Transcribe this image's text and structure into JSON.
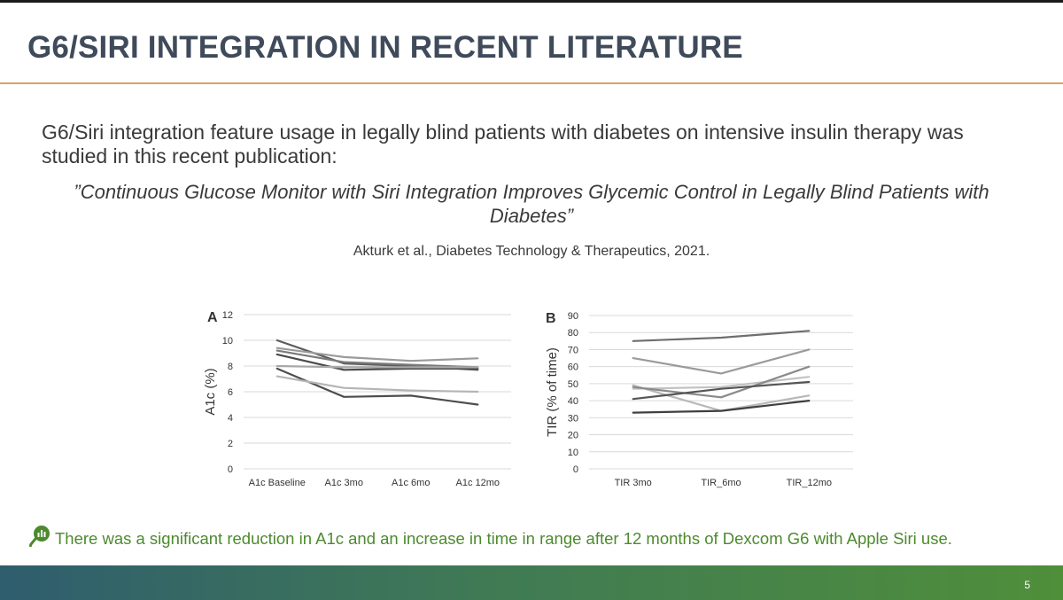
{
  "slide": {
    "title": "G6/SIRI INTEGRATION IN RECENT LITERATURE",
    "intro": "G6/Siri integration feature usage in legally blind patients with diabetes on intensive insulin therapy was studied in this recent publication:",
    "quote": "”Continuous Glucose Monitor with Siri Integration Improves Glycemic Control in Legally Blind Patients with Diabetes”",
    "citation": "Akturk et al., Diabetes Technology & Therapeutics, 2021.",
    "conclusion": "There was a significant reduction in A1c and an increase in time in range after 12 months of Dexcom G6 with Apple Siri use.",
    "page_number": "5"
  },
  "chart_data": [
    {
      "type": "line",
      "panel_label": "A",
      "categories": [
        "A1c Baseline",
        "A1c 3mo",
        "A1c 6mo",
        "A1c 12mo"
      ],
      "ylabel": "A1c (%)",
      "xlabel": "",
      "ylim": [
        0,
        12
      ],
      "yticks": [
        0,
        2,
        4,
        6,
        8,
        10,
        12
      ],
      "grid": true,
      "legend": "none",
      "series": [
        {
          "values": [
            10.0,
            8.2,
            8.0,
            7.7
          ],
          "color": "#5c5c5c"
        },
        {
          "values": [
            9.4,
            8.7,
            8.4,
            8.6
          ],
          "color": "#9a9a9a"
        },
        {
          "values": [
            9.2,
            8.3,
            8.1,
            7.9
          ],
          "color": "#7a7a7a"
        },
        {
          "values": [
            8.9,
            7.7,
            7.8,
            7.8
          ],
          "color": "#4a4a4a"
        },
        {
          "values": [
            8.0,
            7.9,
            7.9,
            7.9
          ],
          "color": "#a8a8a8"
        },
        {
          "values": [
            7.8,
            5.6,
            5.7,
            5.0
          ],
          "color": "#4d4d4d"
        },
        {
          "values": [
            7.2,
            6.3,
            6.1,
            6.0
          ],
          "color": "#b5b5b5"
        }
      ]
    },
    {
      "type": "line",
      "panel_label": "B",
      "categories": [
        "TIR 3mo",
        "TIR_6mo",
        "TIR_12mo"
      ],
      "ylabel": "TIR (% of time)",
      "xlabel": "",
      "ylim": [
        0,
        90
      ],
      "yticks": [
        0,
        10,
        20,
        30,
        40,
        50,
        60,
        70,
        80,
        90
      ],
      "grid": true,
      "legend": "none",
      "series": [
        {
          "values": [
            75,
            77,
            81
          ],
          "color": "#6e6e6e"
        },
        {
          "values": [
            65,
            56,
            70
          ],
          "color": "#9a9a9a"
        },
        {
          "values": [
            49,
            34,
            43
          ],
          "color": "#b8b8b8"
        },
        {
          "values": [
            47,
            48,
            54
          ],
          "color": "#c2c2c2"
        },
        {
          "values": [
            48,
            42,
            60
          ],
          "color": "#8a8a8a"
        },
        {
          "values": [
            41,
            47,
            51
          ],
          "color": "#555555"
        },
        {
          "values": [
            33,
            34,
            40
          ],
          "color": "#3f3f3f"
        }
      ]
    }
  ],
  "icons": {
    "conclusion": "lightbulb-chart-icon"
  },
  "colors": {
    "title": "#3f4a5a",
    "rule": "#d9a068",
    "conclusion": "#4d8a2e"
  }
}
